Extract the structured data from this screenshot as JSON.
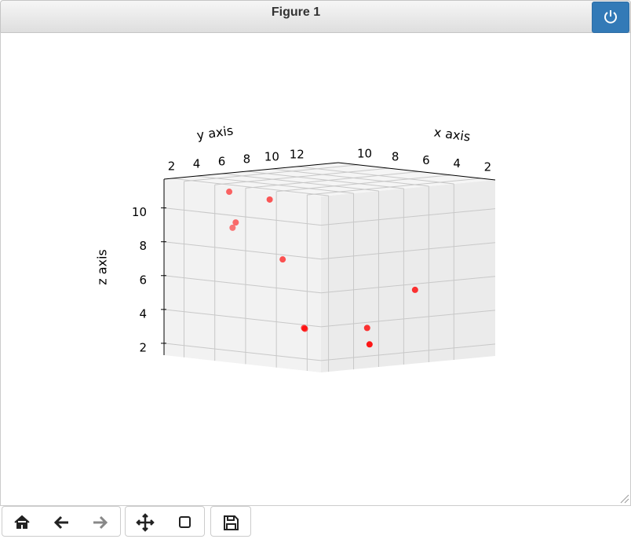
{
  "window": {
    "title": "Figure 1"
  },
  "chart_data": {
    "type": "scatter3d",
    "xlabel": "x axis",
    "ylabel": "y axis",
    "zlabel": "z axis",
    "xlim": [
      1.1,
      11.3
    ],
    "ylim": [
      1.4,
      15.3
    ],
    "zlim": [
      1.3,
      11.7
    ],
    "xticks": [
      2,
      4,
      6,
      8,
      10
    ],
    "yticks": [
      2,
      4,
      6,
      8,
      10,
      12
    ],
    "zticks": [
      2,
      4,
      6,
      8,
      10
    ],
    "grid": true,
    "series": [
      {
        "color": "#ff0000",
        "x": [
          9.1,
          8.1,
          9.9,
          11.0,
          7.5,
          4.6,
          6.6,
          6.3,
          4.7,
          2.1
        ],
        "y": [
          3.9,
          5.9,
          5.4,
          6.5,
          6.2,
          13.2,
          6.8,
          6.5,
          9.5,
          6.5
        ],
        "z": [
          11,
          10.5,
          9,
          8.5,
          7,
          5,
          3,
          3,
          3,
          2.5
        ]
      }
    ]
  }
}
